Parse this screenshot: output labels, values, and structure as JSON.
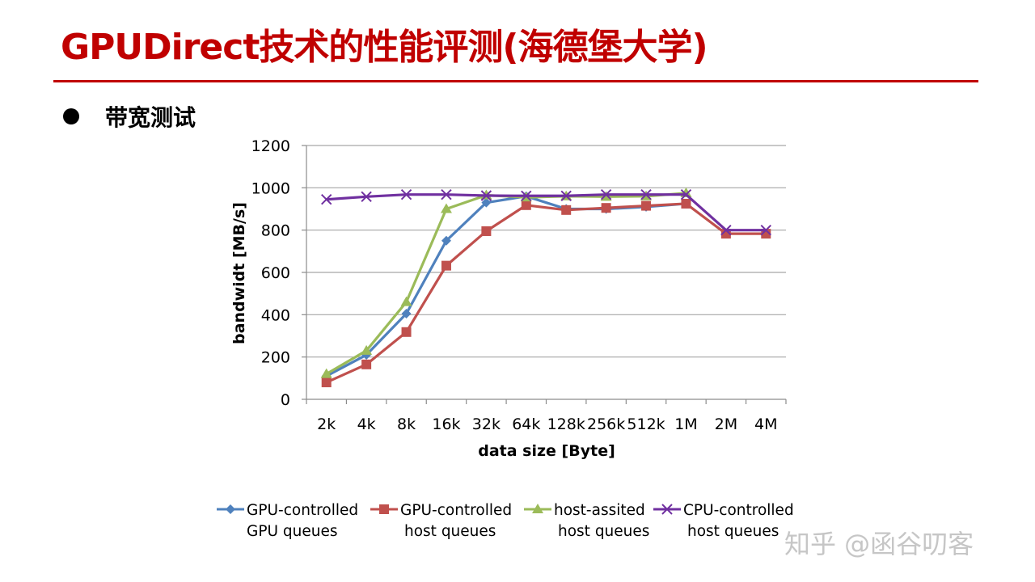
{
  "slide": {
    "title": "GPUDirect技术的性能评测(海德堡大学)",
    "bullet": "带宽测试"
  },
  "watermark": "知乎 @函谷叨客",
  "chart_data": {
    "type": "line",
    "xlabel": "data size [Byte]",
    "ylabel": "bandwidt [MB/s]",
    "categories": [
      "2k",
      "4k",
      "8k",
      "16k",
      "32k",
      "64k",
      "128k",
      "256k",
      "512k",
      "1M",
      "2M",
      "4M"
    ],
    "ylim": [
      0,
      1200
    ],
    "yticks": [
      0,
      200,
      400,
      600,
      800,
      1000,
      1200
    ],
    "grid": true,
    "legend_position": "bottom",
    "series": [
      {
        "name": "GPU-controlled GPU queues",
        "name_lines": [
          "GPU-controlled",
          "GPU queues"
        ],
        "color": "#4f81bd",
        "marker": "diamond",
        "values": [
          110,
          210,
          405,
          750,
          930,
          960,
          900,
          900,
          910,
          925,
          null,
          null
        ]
      },
      {
        "name": "GPU-controlled host queues",
        "name_lines": [
          "GPU-controlled",
          "host queues"
        ],
        "color": "#c0504d",
        "marker": "square",
        "values": [
          80,
          165,
          318,
          632,
          795,
          918,
          895,
          905,
          915,
          925,
          783,
          783
        ]
      },
      {
        "name": "host-assited host queues",
        "name_lines": [
          "host-assited",
          "host queues"
        ],
        "color": "#9bbb59",
        "marker": "triangle",
        "values": [
          120,
          230,
          460,
          900,
          965,
          955,
          960,
          958,
          960,
          975,
          null,
          null
        ]
      },
      {
        "name": "CPU-controlled host queues",
        "name_lines": [
          "CPU-controlled",
          "host queues"
        ],
        "color": "#7030a0",
        "marker": "x",
        "values": [
          945,
          958,
          968,
          968,
          963,
          962,
          962,
          968,
          968,
          968,
          800,
          800
        ]
      }
    ]
  }
}
